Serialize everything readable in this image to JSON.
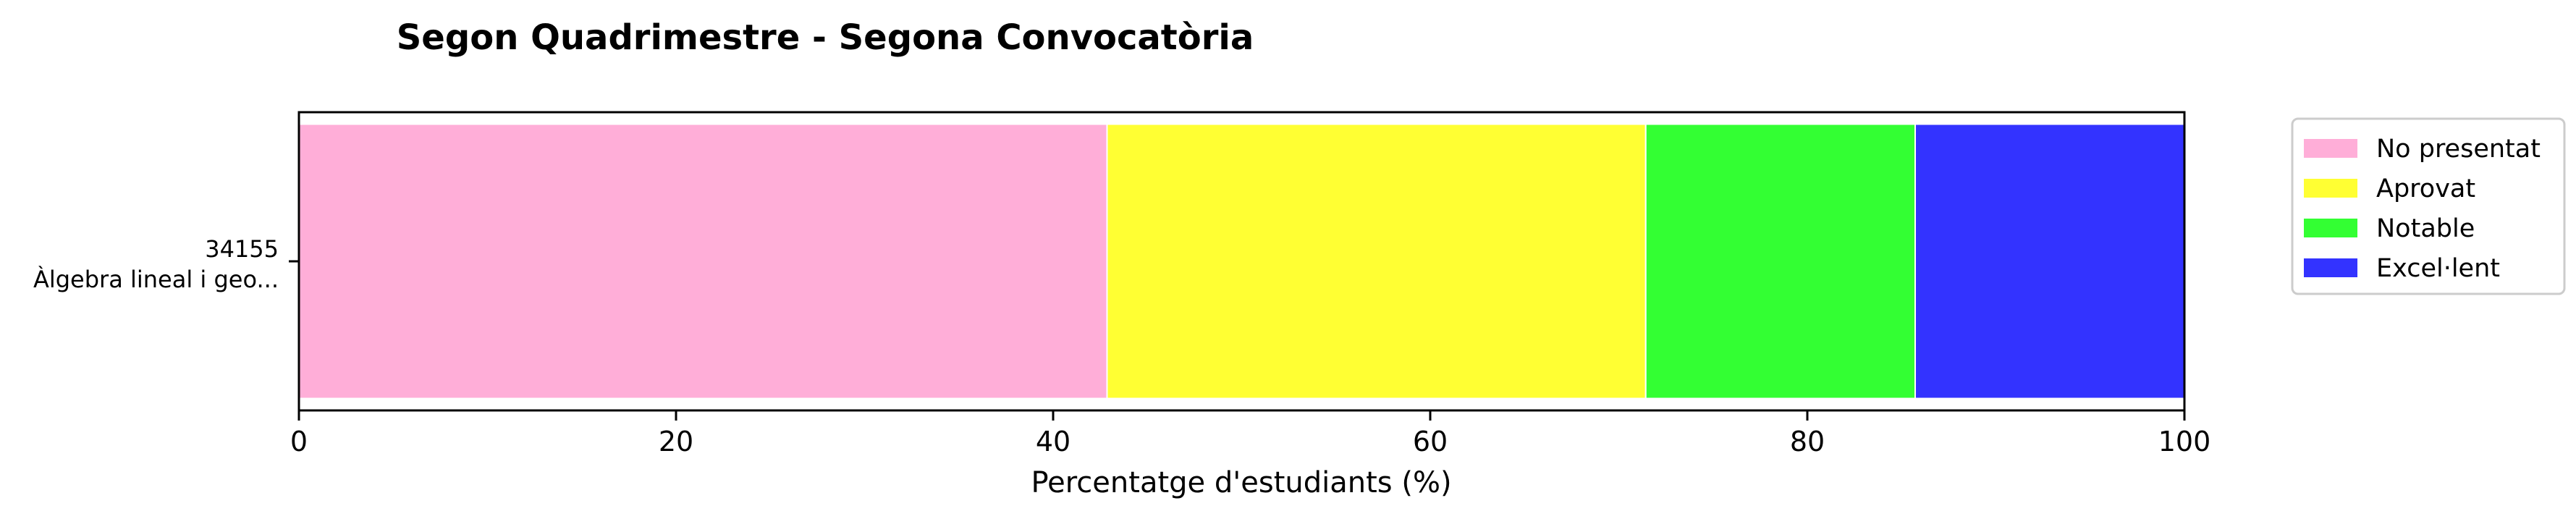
{
  "chart_data": {
    "type": "bar",
    "orientation": "horizontal",
    "stacked": true,
    "title": "Segon Quadrimestre - Segona Convocatòria",
    "xlabel": "Percentatge d'estudiants (%)",
    "ylabel": "",
    "xlim": [
      0,
      100
    ],
    "xticks": [
      0,
      20,
      40,
      60,
      80,
      100
    ],
    "grid": false,
    "legend_position": "outside-right-top",
    "categories": [
      {
        "code": "34155",
        "name": "Àlgebra lineal i geo..."
      }
    ],
    "series": [
      {
        "name": "No presentat",
        "color": "#ffaed8",
        "values": [
          42.86
        ]
      },
      {
        "name": "Aprovat",
        "color": "#ffff33",
        "values": [
          28.57
        ]
      },
      {
        "name": "Notable",
        "color": "#33ff33",
        "values": [
          14.29
        ]
      },
      {
        "name": "Excel·lent",
        "color": "#3333ff",
        "values": [
          14.29
        ]
      }
    ]
  }
}
